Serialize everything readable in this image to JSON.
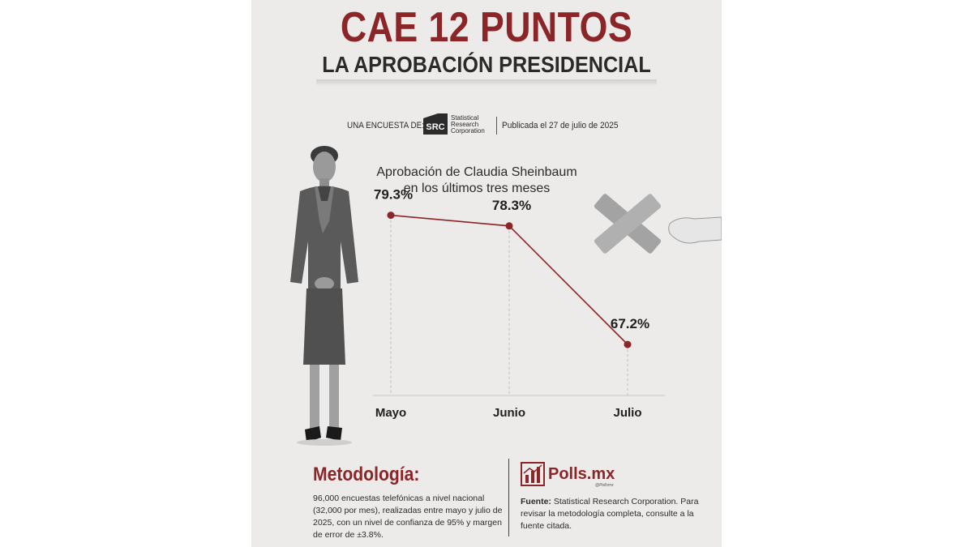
{
  "header": {
    "title_prefix": "CAE",
    "title_number": "12",
    "title_suffix": "PUNTOS",
    "subtitle": "LA APROBACIÓN PRESIDENCIAL"
  },
  "byline": {
    "prefix": "UNA ENCUESTA DE:",
    "src_logo_text": "SRC",
    "src_org_line1": "Statistical",
    "src_org_line2": "Research",
    "src_org_line3": "Corporation",
    "published": "Publicada el 27 de julio de 2025"
  },
  "colors": {
    "accent": "#8b2528",
    "text": "#2b2b2b",
    "background": "#ecebea"
  },
  "chart_data": {
    "type": "line",
    "title": "Aprobación de Claudia Sheinbaum en los últimos tres meses",
    "title_line1": "Aprobación de Claudia Sheinbaum",
    "title_line2": "en los últimos tres meses",
    "categories": [
      "Mayo",
      "Junio",
      "Julio"
    ],
    "values": [
      79.3,
      78.3,
      67.2
    ],
    "data_labels": [
      "79.3%",
      "78.3%",
      "67.2%"
    ],
    "unit": "%",
    "ylim": [
      60,
      82
    ],
    "grid": "vertical dashed guides"
  },
  "methodology": {
    "title": "Metodología:",
    "text": "96,000 encuestas telefónicas a nivel nacional (32,000 por mes), realizadas entre mayo y julio de 2025, con un nivel de confianza de 95% y margen de error de ±3.8%."
  },
  "source": {
    "brand": "Polls.mx",
    "brand_tag": "@Pollsmx",
    "label": "Fuente:",
    "text": "Statistical Research Corporation. Para revisar la metodología completa, consulte a la fuente citada."
  }
}
